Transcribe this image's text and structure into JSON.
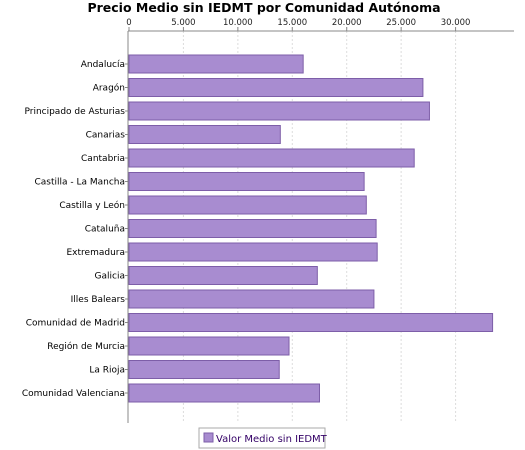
{
  "chart_data": {
    "type": "bar",
    "orientation": "horizontal",
    "title": "Precio Medio sin IEDMT por Comunidad Autónoma",
    "categories": [
      "Andalucía",
      "Aragón",
      "Principado de Asturias",
      "Canarias",
      "Cantabria",
      "Castilla - La Mancha",
      "Castilla y León",
      "Cataluña",
      "Extremadura",
      "Galicia",
      "Illes Balears",
      "Comunidad de Madrid",
      "Región de Murcia",
      "La Rioja",
      "Comunidad Valenciana"
    ],
    "series": [
      {
        "name": "Valor Medio sin IEDMT",
        "values": [
          16000,
          27000,
          27600,
          13900,
          26200,
          21600,
          21800,
          22700,
          22800,
          17300,
          22500,
          33400,
          14700,
          13800,
          17500
        ]
      }
    ],
    "xlim": [
      0,
      35000
    ],
    "xticks": [
      "0",
      "5.000",
      "10.000",
      "15.000",
      "20.000",
      "25.000",
      "30.000"
    ],
    "xtick_values": [
      0,
      5000,
      10000,
      15000,
      20000,
      25000,
      30000
    ],
    "x_axis_position": "top",
    "grid": true,
    "legend_position": "bottom",
    "colors": {
      "bar_fill": "#a88cd0",
      "bar_stroke": "#7d5ea8",
      "grid": "#dddddd",
      "axis": "#888888"
    }
  }
}
